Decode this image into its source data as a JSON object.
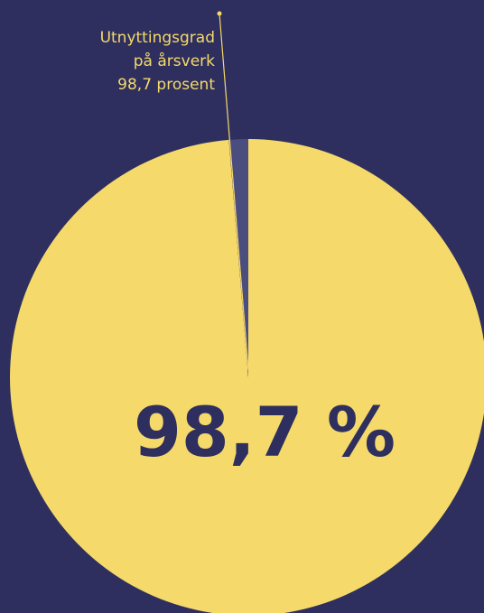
{
  "chart_data": {
    "type": "pie",
    "annotation": [
      "Utnyttingsgrad",
      "på årsverk",
      "98,7 prosent"
    ],
    "values": [
      98.7,
      1.3
    ],
    "value_labels": [
      "98,7 %",
      null
    ],
    "colors": [
      "#f5d96b",
      "#4b4d7e"
    ]
  }
}
